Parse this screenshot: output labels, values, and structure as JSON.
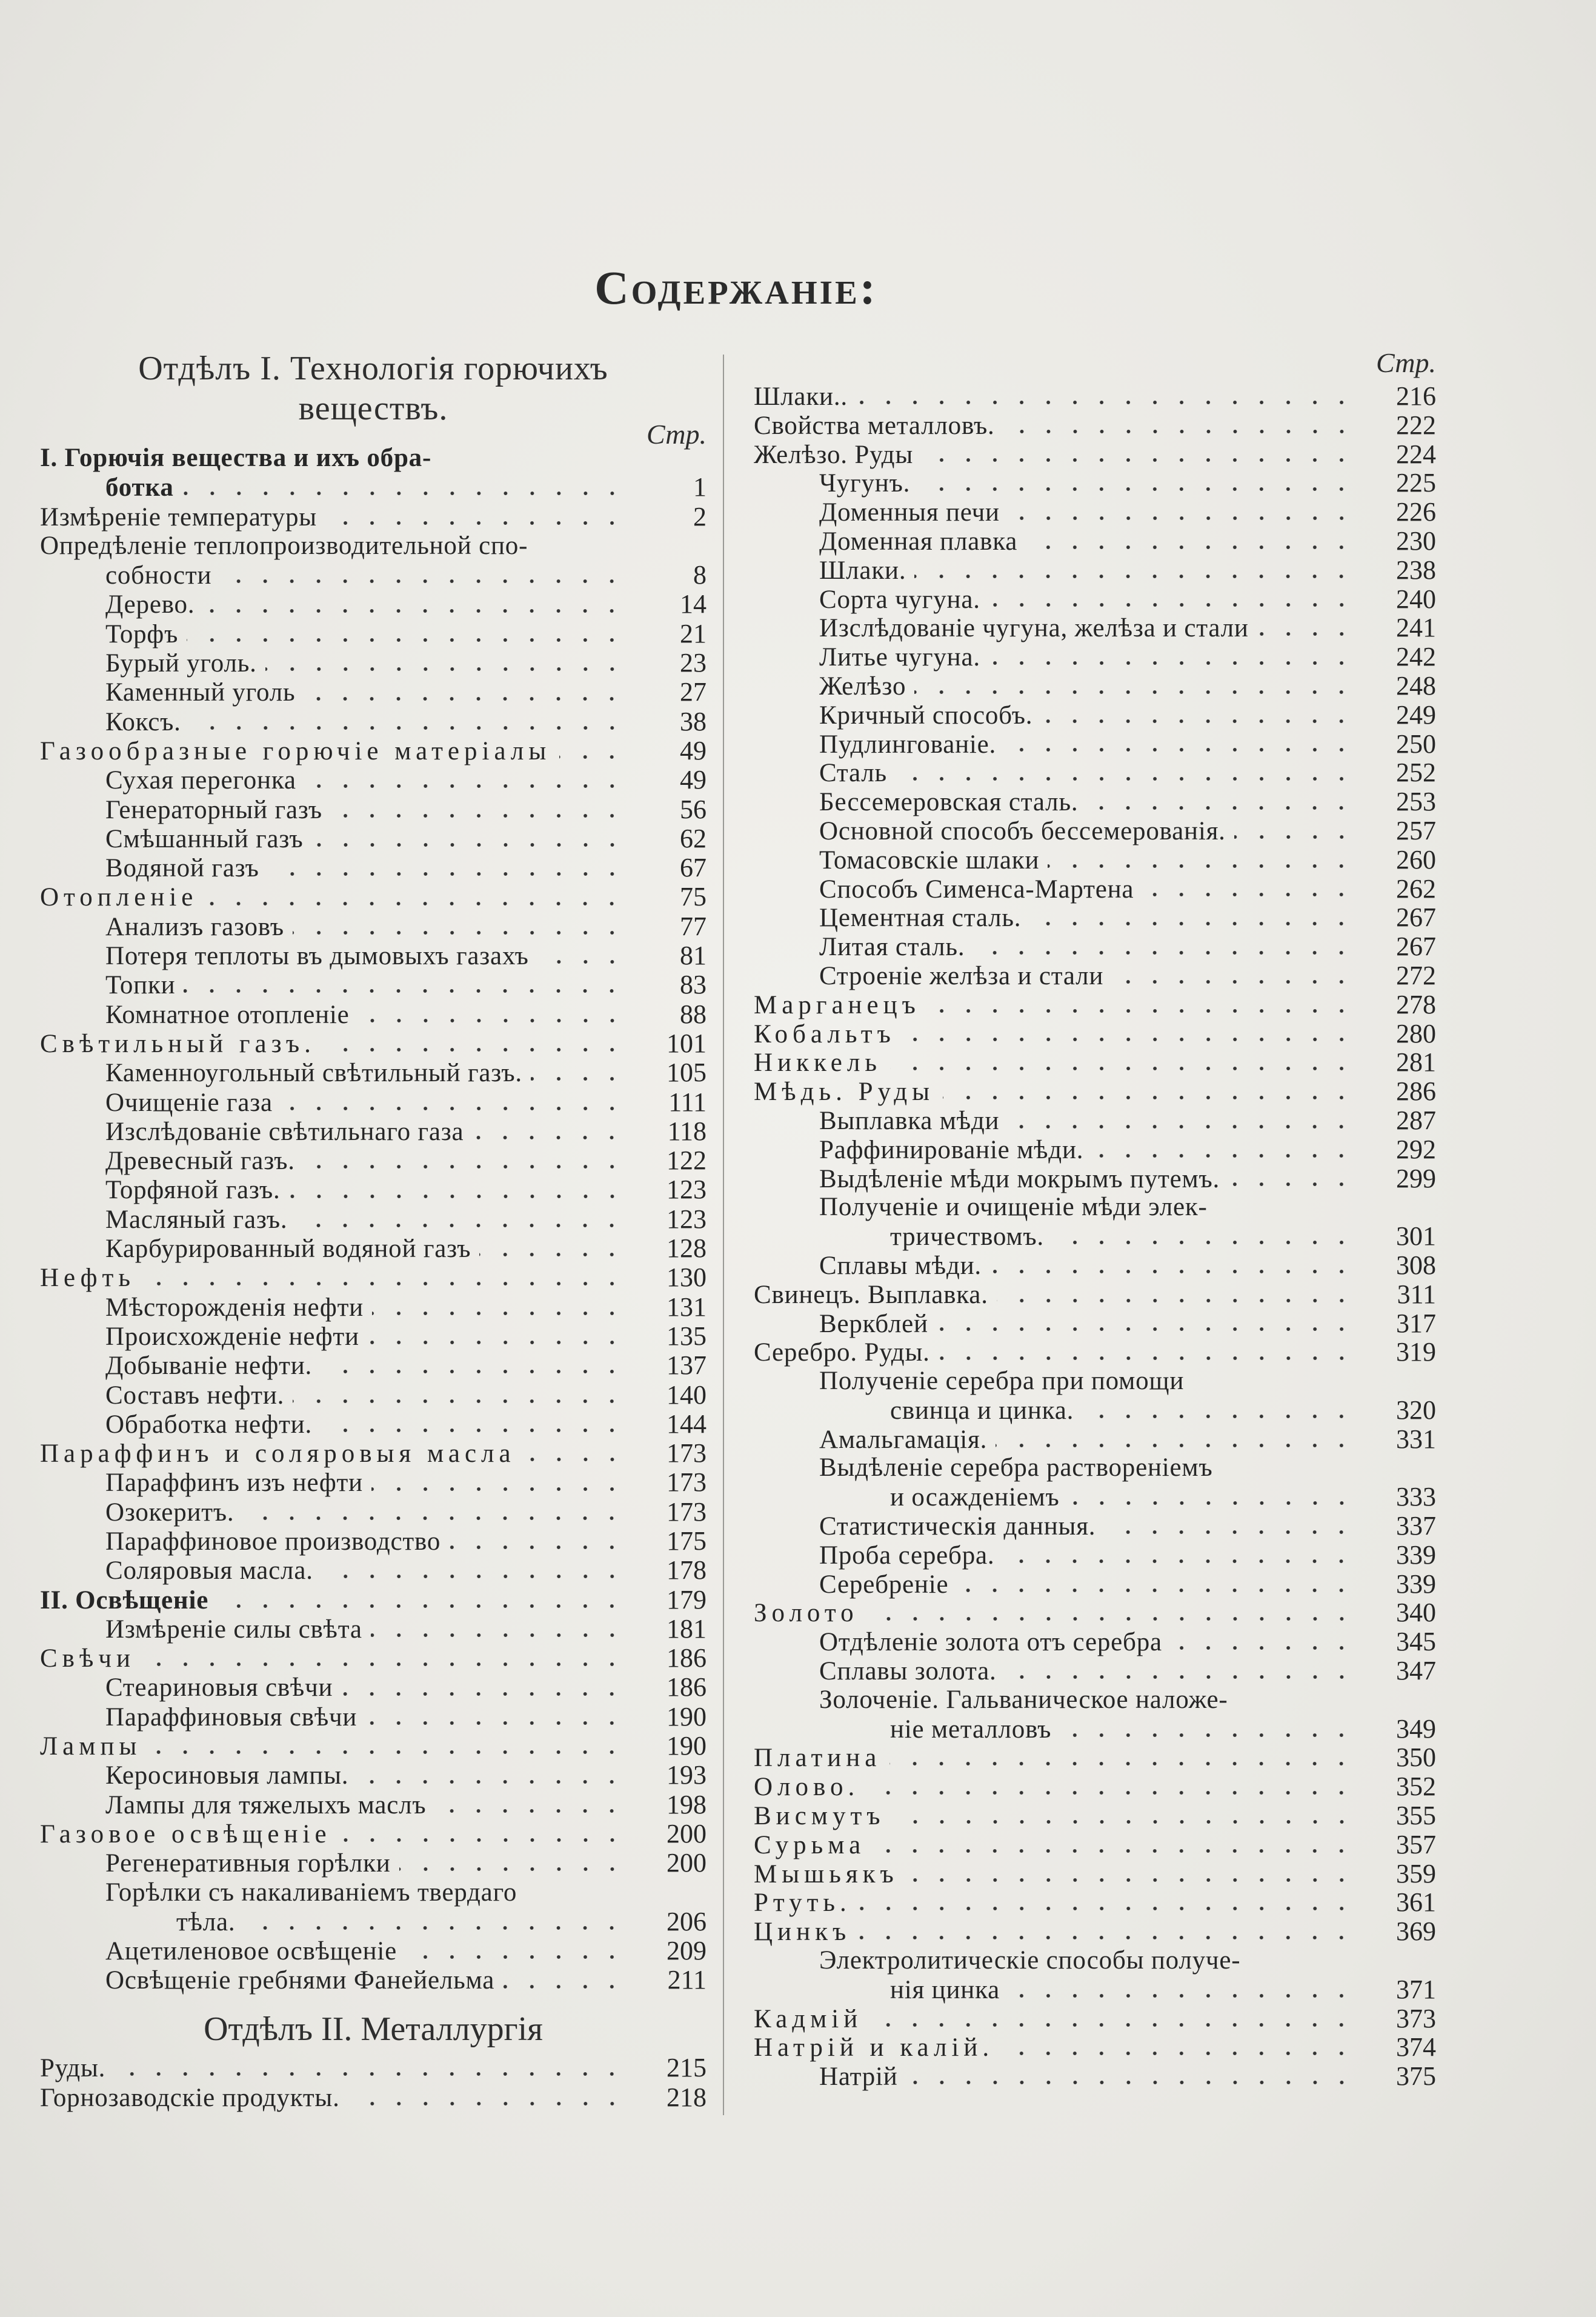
{
  "title": "Содержаніе:",
  "left": {
    "heading_line1": "Отдѣлъ I. Технологія горючихъ",
    "heading_line2": "веществъ.",
    "page_header": "Стр.",
    "items": [
      {
        "text": "I. Горючія вещества и ихъ обра-",
        "cont": "ботка",
        "page": "1",
        "level": 0,
        "style": "bold"
      },
      {
        "text": "Измѣреніе температуры",
        "page": "2",
        "level": 0
      },
      {
        "text": "Опредѣленіе теплопроизводительной спо-",
        "cont": "собности",
        "page": "8",
        "level": 0
      },
      {
        "text": "Дерево.",
        "page": "14",
        "level": 1
      },
      {
        "text": "Торфъ",
        "page": "21",
        "level": 1
      },
      {
        "text": "Бурый уголь.",
        "page": "23",
        "level": 1
      },
      {
        "text": "Каменный уголь",
        "page": "27",
        "level": 1
      },
      {
        "text": "Коксъ.",
        "page": "38",
        "level": 1
      },
      {
        "text": "Газообразные горючіе матеріалы",
        "page": "49",
        "level": 0,
        "style": "spaced"
      },
      {
        "text": "Сухая перегонка",
        "page": "49",
        "level": 1
      },
      {
        "text": "Генераторный газъ",
        "page": "56",
        "level": 1
      },
      {
        "text": "Смѣшанный газъ",
        "page": "62",
        "level": 1
      },
      {
        "text": "Водяной газъ",
        "page": "67",
        "level": 1
      },
      {
        "text": "Отопленіе",
        "page": "75",
        "level": 0,
        "style": "spaced"
      },
      {
        "text": "Анализъ газовъ",
        "page": "77",
        "level": 1
      },
      {
        "text": "Потеря теплоты въ дымовыхъ газахъ",
        "page": "81",
        "level": 1
      },
      {
        "text": "Топки",
        "page": "83",
        "level": 1
      },
      {
        "text": "Комнатное отопленіе",
        "page": "88",
        "level": 1
      },
      {
        "text": "Свѣтильный газъ.",
        "page": "101",
        "level": 0,
        "style": "spaced"
      },
      {
        "text": "Каменноугольный свѣтильный газъ.",
        "page": "105",
        "level": 1
      },
      {
        "text": "Очищеніе газа",
        "page": "111",
        "level": 1
      },
      {
        "text": "Изслѣдованіе свѣтильнаго газа",
        "page": "118",
        "level": 1
      },
      {
        "text": "Древесный газъ.",
        "page": "122",
        "level": 1
      },
      {
        "text": "Торфяной газъ.",
        "page": "123",
        "level": 1
      },
      {
        "text": "Масляный газъ.",
        "page": "123",
        "level": 1
      },
      {
        "text": "Карбурированный водяной газъ",
        "page": "128",
        "level": 1
      },
      {
        "text": "Нефть",
        "page": "130",
        "level": 0,
        "style": "spaced"
      },
      {
        "text": "Мѣсторожденія нефти",
        "page": "131",
        "level": 1
      },
      {
        "text": "Происхожденіе нефти",
        "page": "135",
        "level": 1
      },
      {
        "text": "Добываніе нефти.",
        "page": "137",
        "level": 1
      },
      {
        "text": "Составъ нефти.",
        "page": "140",
        "level": 1
      },
      {
        "text": "Обработка нефти.",
        "page": "144",
        "level": 1
      },
      {
        "text": "Параффинъ и соляровыя масла",
        "page": "173",
        "level": 0,
        "style": "spaced"
      },
      {
        "text": "Параффинъ изъ нефти",
        "page": "173",
        "level": 1
      },
      {
        "text": "Озокеритъ.",
        "page": "173",
        "level": 1
      },
      {
        "text": "Параффиновое производство",
        "page": "175",
        "level": 1
      },
      {
        "text": "Соляровыя масла.",
        "page": "178",
        "level": 1
      },
      {
        "text": "II. Освѣщеніе",
        "page": "179",
        "level": 0,
        "style": "bold"
      },
      {
        "text": "Измѣреніе силы свѣта",
        "page": "181",
        "level": 1
      },
      {
        "text": "Свѣчи",
        "page": "186",
        "level": 0,
        "style": "spaced"
      },
      {
        "text": "Стеариновыя свѣчи",
        "page": "186",
        "level": 1
      },
      {
        "text": "Параффиновыя свѣчи",
        "page": "190",
        "level": 1
      },
      {
        "text": "Лампы",
        "page": "190",
        "level": 0,
        "style": "spaced"
      },
      {
        "text": "Керосиновыя лампы.",
        "page": "193",
        "level": 1
      },
      {
        "text": "Лампы для тяжелыхъ маслъ",
        "page": "198",
        "level": 1
      },
      {
        "text": "Газовое освѣщеніе",
        "page": "200",
        "level": 0,
        "style": "spaced"
      },
      {
        "text": "Регенеративныя горѣлки",
        "page": "200",
        "level": 1
      },
      {
        "text": "Горѣлки съ накаливаніемъ твердаго",
        "cont": "тѣла.",
        "page": "206",
        "level": 1
      },
      {
        "text": "Ацетиленовое освѣщеніе",
        "page": "209",
        "level": 1
      },
      {
        "text": "Освѣщеніе гребнями Фанейельма",
        "page": "211",
        "level": 1
      },
      {
        "type": "heading",
        "text": "Отдѣлъ II. Металлургія"
      },
      {
        "text": "Руды.",
        "page": "215",
        "level": 0
      },
      {
        "text": "Горнозаводскіе продукты.",
        "page": "218",
        "level": 0
      }
    ]
  },
  "right": {
    "page_header": "Стр.",
    "items": [
      {
        "text": "Шлаки..",
        "page": "216",
        "level": 0
      },
      {
        "text": "Свойства металловъ.",
        "page": "222",
        "level": 0
      },
      {
        "text": "Желѣзо. Руды",
        "page": "224",
        "level": 0
      },
      {
        "text": "Чугунъ.",
        "page": "225",
        "level": 1
      },
      {
        "text": "Доменныя печи",
        "page": "226",
        "level": 1
      },
      {
        "text": "Доменная плавка",
        "page": "230",
        "level": 1
      },
      {
        "text": "Шлаки.",
        "page": "238",
        "level": 1
      },
      {
        "text": "Сорта чугуна.",
        "page": "240",
        "level": 1
      },
      {
        "text": "Изслѣдованіе чугуна, желѣза и стали",
        "page": "241",
        "level": 1
      },
      {
        "text": "Литье чугуна.",
        "page": "242",
        "level": 1
      },
      {
        "text": "Желѣзо",
        "page": "248",
        "level": 1
      },
      {
        "text": "Кричный способъ.",
        "page": "249",
        "level": 1
      },
      {
        "text": "Пудлингованіе.",
        "page": "250",
        "level": 1
      },
      {
        "text": "Сталь",
        "page": "252",
        "level": 1
      },
      {
        "text": "Бессемеровская сталь.",
        "page": "253",
        "level": 1
      },
      {
        "text": "Основной способъ бессемерованія.",
        "page": "257",
        "level": 1
      },
      {
        "text": "Томасовскіе шлаки",
        "page": "260",
        "level": 1
      },
      {
        "text": "Способъ Сименса-Мартена",
        "page": "262",
        "level": 1
      },
      {
        "text": "Цементная сталь.",
        "page": "267",
        "level": 1
      },
      {
        "text": "Литая сталь.",
        "page": "267",
        "level": 1
      },
      {
        "text": "Строеніе желѣза и стали",
        "page": "272",
        "level": 1
      },
      {
        "text": "Марганецъ",
        "page": "278",
        "level": 0,
        "style": "spaced"
      },
      {
        "text": "Кобальтъ",
        "page": "280",
        "level": 0,
        "style": "spaced"
      },
      {
        "text": "Никкель",
        "page": "281",
        "level": 0,
        "style": "spaced"
      },
      {
        "text": "Мѣдь. Руды",
        "page": "286",
        "level": 0,
        "style": "spaced"
      },
      {
        "text": "Выплавка мѣди",
        "page": "287",
        "level": 1
      },
      {
        "text": "Раффинированіе мѣди.",
        "page": "292",
        "level": 1
      },
      {
        "text": "Выдѣленіе мѣди мокрымъ путемъ.",
        "page": "299",
        "level": 1
      },
      {
        "text": "Полученіе и очищеніе мѣди элек-",
        "cont": "тричествомъ.",
        "page": "301",
        "level": 1
      },
      {
        "text": "Сплавы мѣди.",
        "page": "308",
        "level": 1
      },
      {
        "text": "Свинецъ. Выплавка.",
        "page": "311",
        "level": 0
      },
      {
        "text": "Веркблей",
        "page": "317",
        "level": 1
      },
      {
        "text": "Серебро. Руды.",
        "page": "319",
        "level": 0
      },
      {
        "text": "Полученіе серебра при помощи",
        "cont": "свинца и цинка.",
        "page": "320",
        "level": 1
      },
      {
        "text": "Амальгамація.",
        "page": "331",
        "level": 1
      },
      {
        "text": "Выдѣленіе серебра раствореніемъ",
        "cont": "и осажденіемъ",
        "page": "333",
        "level": 1
      },
      {
        "text": "Статистическія данныя.",
        "page": "337",
        "level": 1
      },
      {
        "text": "Проба серебра.",
        "page": "339",
        "level": 1
      },
      {
        "text": "Серебреніе",
        "page": "339",
        "level": 1
      },
      {
        "text": "Золото",
        "page": "340",
        "level": 0,
        "style": "spaced"
      },
      {
        "text": "Отдѣленіе золота отъ серебра",
        "page": "345",
        "level": 1
      },
      {
        "text": "Сплавы золота.",
        "page": "347",
        "level": 1
      },
      {
        "text": "Золоченіе. Гальваническое наложе-",
        "cont": "ніе металловъ",
        "page": "349",
        "level": 1
      },
      {
        "text": "Платина",
        "page": "350",
        "level": 0,
        "style": "spaced"
      },
      {
        "text": "Олово.",
        "page": "352",
        "level": 0,
        "style": "spaced"
      },
      {
        "text": "Висмутъ",
        "page": "355",
        "level": 0,
        "style": "spaced"
      },
      {
        "text": "Сурьма",
        "page": "357",
        "level": 0,
        "style": "spaced"
      },
      {
        "text": "Мышьякъ",
        "page": "359",
        "level": 0,
        "style": "spaced"
      },
      {
        "text": "Ртуть.",
        "page": "361",
        "level": 0,
        "style": "spaced"
      },
      {
        "text": "Цинкъ",
        "page": "369",
        "level": 0,
        "style": "spaced"
      },
      {
        "text": "Электролитическіе способы получе-",
        "cont": "нія цинка",
        "page": "371",
        "level": 1
      },
      {
        "text": "Кадмій",
        "page": "373",
        "level": 0,
        "style": "spaced"
      },
      {
        "text": "Натрій и калій.",
        "page": "374",
        "level": 0,
        "style": "spaced"
      },
      {
        "text": "Натрій",
        "page": "375",
        "level": 1
      }
    ]
  }
}
